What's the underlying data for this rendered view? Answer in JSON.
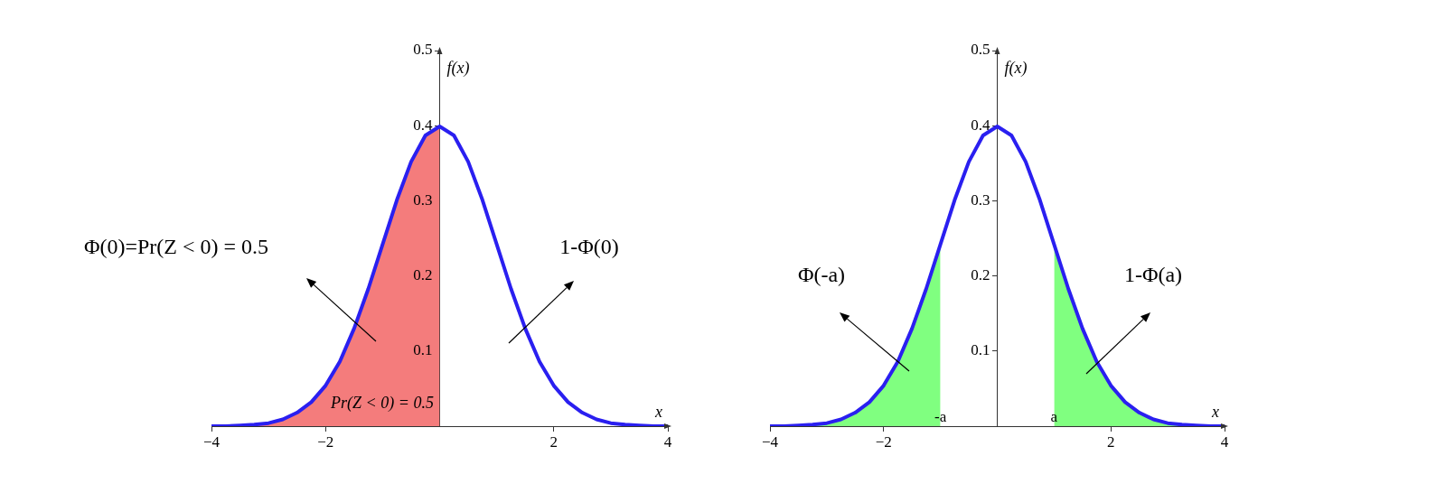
{
  "chart_data": [
    {
      "type": "line",
      "xlabel": "x",
      "ylabel": "f(x)",
      "xlim": [
        -4,
        4
      ],
      "ylim": [
        0,
        0.5
      ],
      "xticks": [
        -4,
        -2,
        2,
        4
      ],
      "yticks": [
        0.1,
        0.2,
        0.3,
        0.4,
        0.5
      ],
      "grid": false,
      "legend": false,
      "marker": "none",
      "annotations": [
        "Φ(0)=Pr(Z < 0) = 0.5",
        "1-Φ(0)",
        "Pr(Z < 0) = 0.5"
      ],
      "series": [
        {
          "type": "area",
          "color": "#f47c7c",
          "x": [
            -4,
            -3.75,
            -3.5,
            -3.25,
            -3,
            -2.75,
            -2.5,
            -2.25,
            -2,
            -1.75,
            -1.5,
            -1.25,
            -1,
            -0.75,
            -0.5,
            -0.25,
            0
          ],
          "values": [
            0.0,
            0.0,
            0.001,
            0.002,
            0.004,
            0.009,
            0.018,
            0.032,
            0.054,
            0.086,
            0.13,
            0.183,
            0.242,
            0.301,
            0.352,
            0.387,
            0.399
          ]
        },
        {
          "type": "line",
          "color": "#2a1ff0",
          "x": [
            -4,
            -3.75,
            -3.5,
            -3.25,
            -3,
            -2.75,
            -2.5,
            -2.25,
            -2,
            -1.75,
            -1.5,
            -1.25,
            -1,
            -0.75,
            -0.5,
            -0.25,
            0,
            0.25,
            0.5,
            0.75,
            1,
            1.25,
            1.5,
            1.75,
            2,
            2.25,
            2.5,
            2.75,
            3,
            3.25,
            3.5,
            3.75,
            4
          ],
          "values": [
            0.0,
            0.0,
            0.001,
            0.002,
            0.004,
            0.009,
            0.018,
            0.032,
            0.054,
            0.086,
            0.13,
            0.183,
            0.242,
            0.301,
            0.352,
            0.387,
            0.399,
            0.387,
            0.352,
            0.301,
            0.242,
            0.183,
            0.13,
            0.086,
            0.054,
            0.032,
            0.018,
            0.009,
            0.004,
            0.002,
            0.001,
            0.0,
            0.0
          ]
        }
      ]
    },
    {
      "type": "line",
      "xlabel": "x",
      "ylabel": "f(x)",
      "xlim": [
        -4,
        4
      ],
      "ylim": [
        0,
        0.5
      ],
      "xticks": [
        -4,
        -2,
        2,
        4
      ],
      "yticks": [
        0.1,
        0.2,
        0.3,
        0.4,
        0.5
      ],
      "grid": false,
      "legend": false,
      "marker": "none",
      "annotations": [
        "Φ(-a)",
        "1-Φ(a)",
        {
          "text": "-a",
          "x": -1,
          "y": 0
        },
        {
          "text": "a",
          "x": 1,
          "y": 0
        }
      ],
      "series": [
        {
          "type": "area",
          "color": "#80ff80",
          "x": [
            -4,
            -3.75,
            -3.5,
            -3.25,
            -3,
            -2.75,
            -2.5,
            -2.25,
            -2,
            -1.75,
            -1.5,
            -1.25,
            -1
          ],
          "values": [
            0.0,
            0.0,
            0.001,
            0.002,
            0.004,
            0.009,
            0.018,
            0.032,
            0.054,
            0.086,
            0.13,
            0.183,
            0.242
          ]
        },
        {
          "type": "area",
          "color": "#80ff80",
          "x": [
            1,
            1.25,
            1.5,
            1.75,
            2,
            2.25,
            2.5,
            2.75,
            3,
            3.25,
            3.5,
            3.75,
            4
          ],
          "values": [
            0.242,
            0.183,
            0.13,
            0.086,
            0.054,
            0.032,
            0.018,
            0.009,
            0.004,
            0.002,
            0.001,
            0.0,
            0.0
          ]
        },
        {
          "type": "line",
          "color": "#2a1ff0",
          "x": [
            -4,
            -3.75,
            -3.5,
            -3.25,
            -3,
            -2.75,
            -2.5,
            -2.25,
            -2,
            -1.75,
            -1.5,
            -1.25,
            -1,
            -0.75,
            -0.5,
            -0.25,
            0,
            0.25,
            0.5,
            0.75,
            1,
            1.25,
            1.5,
            1.75,
            2,
            2.25,
            2.5,
            2.75,
            3,
            3.25,
            3.5,
            3.75,
            4
          ],
          "values": [
            0.0,
            0.0,
            0.001,
            0.002,
            0.004,
            0.009,
            0.018,
            0.032,
            0.054,
            0.086,
            0.13,
            0.183,
            0.242,
            0.301,
            0.352,
            0.387,
            0.399,
            0.387,
            0.352,
            0.301,
            0.242,
            0.183,
            0.13,
            0.086,
            0.054,
            0.032,
            0.018,
            0.009,
            0.004,
            0.002,
            0.001,
            0.0,
            0.0
          ]
        }
      ]
    }
  ]
}
